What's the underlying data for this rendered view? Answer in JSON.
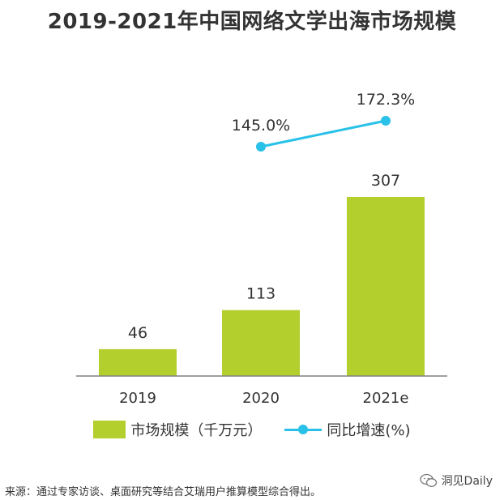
{
  "chart_data": {
    "type": "bar",
    "title": "2019-2021年中国网络文学出海市场规模",
    "categories": [
      "2019",
      "2020",
      "2021e"
    ],
    "series": [
      {
        "name": "市场规模（千万元）",
        "kind": "bar",
        "values": [
          46,
          113,
          307
        ],
        "labels": [
          "46",
          "113",
          "307"
        ]
      },
      {
        "name": "同比增速(%)",
        "kind": "line",
        "x": [
          "2020",
          "2021e"
        ],
        "values": [
          145.0,
          172.3
        ],
        "labels": [
          "145.0%",
          "172.3%"
        ]
      }
    ],
    "xlabel": "",
    "ylabel": "",
    "grid": false,
    "legend_position": "bottom"
  },
  "colors": {
    "bar": "#b3cf2d",
    "line": "#29c1e8",
    "axis": "#808080",
    "text": "#333333"
  },
  "legend": {
    "bar_label": "市场规模（千万元）",
    "line_label": "同比增速(%)"
  },
  "footer": {
    "source": "来源：通过专家访谈、桌面研究等结合艾瑞用户推算模型综合得出。",
    "watermark": "洞见Daily"
  }
}
